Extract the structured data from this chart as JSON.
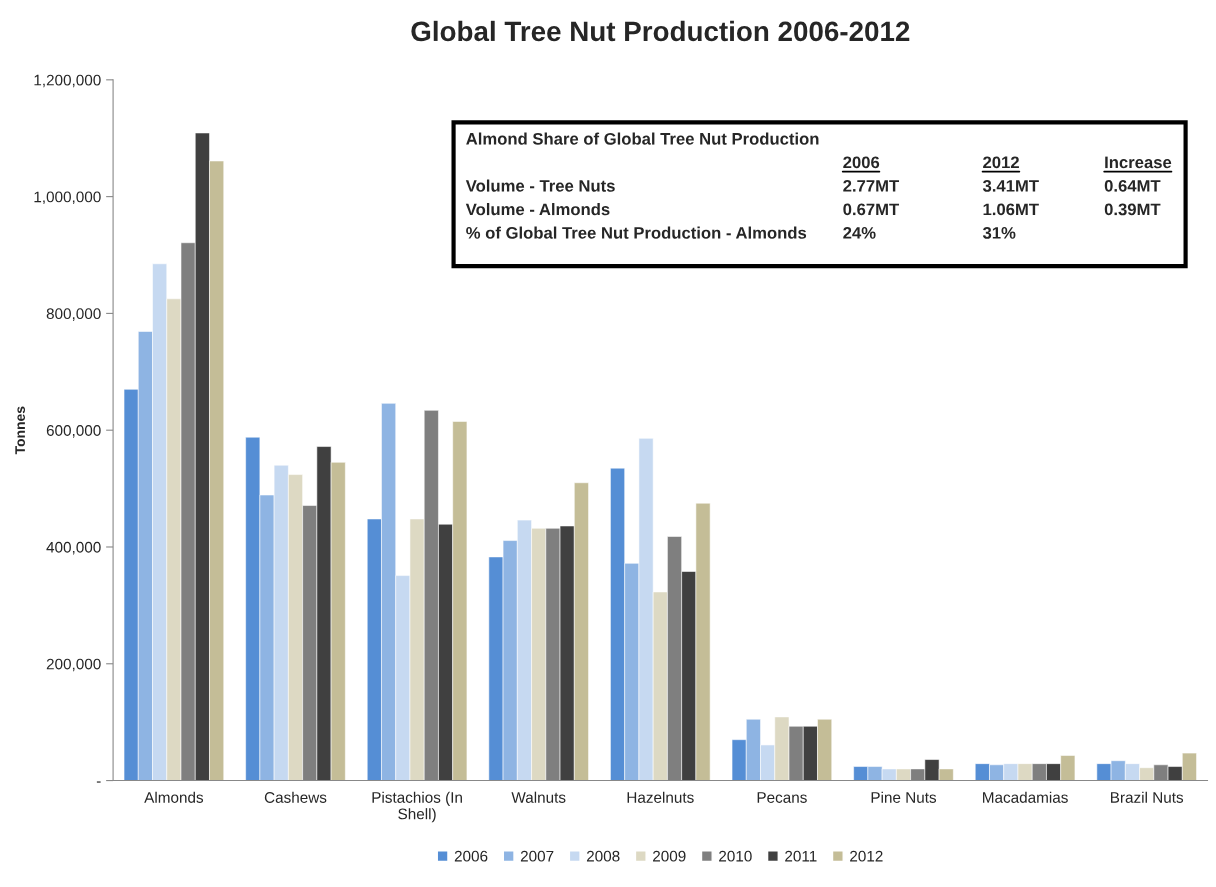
{
  "chart_data": {
    "type": "bar",
    "title": "Global Tree Nut Production 2006-2012",
    "ylabel": "Tonnes",
    "categories": [
      "Almonds",
      "Cashews",
      "Pistachios (In Shell)",
      "Walnuts",
      "Hazelnuts",
      "Pecans",
      "Pine Nuts",
      "Macadamias",
      "Brazil Nuts"
    ],
    "series": [
      {
        "name": "2006",
        "color": "#558ed5",
        "values": [
          670000,
          588000,
          448000,
          383000,
          535000,
          70000,
          24000,
          29000,
          29000
        ]
      },
      {
        "name": "2007",
        "color": "#8eb4e3",
        "values": [
          769000,
          489000,
          646000,
          411000,
          372000,
          105000,
          24000,
          27000,
          34000
        ]
      },
      {
        "name": "2008",
        "color": "#c6d9f1",
        "values": [
          885000,
          540000,
          351000,
          446000,
          586000,
          61000,
          20000,
          29000,
          29000
        ]
      },
      {
        "name": "2009",
        "color": "#ddd9c3",
        "values": [
          825000,
          524000,
          448000,
          432000,
          323000,
          109000,
          20000,
          29000,
          22000
        ]
      },
      {
        "name": "2010",
        "color": "#7f7f7f",
        "values": [
          921000,
          471000,
          634000,
          432000,
          418000,
          93000,
          20000,
          29000,
          27000
        ]
      },
      {
        "name": "2011",
        "color": "#404040",
        "values": [
          1109000,
          572000,
          439000,
          436000,
          358000,
          93000,
          36000,
          29000,
          24000
        ]
      },
      {
        "name": "2012",
        "color": "#c4bd97",
        "values": [
          1061000,
          545000,
          615000,
          510000,
          475000,
          105000,
          20000,
          43000,
          47000
        ]
      }
    ],
    "ylim": [
      0,
      1200000
    ],
    "yticks": [
      {
        "value": 0,
        "label": "-"
      },
      {
        "value": 200000,
        "label": "200,000"
      },
      {
        "value": 400000,
        "label": "400,000"
      },
      {
        "value": 600000,
        "label": "600,000"
      },
      {
        "value": 800000,
        "label": "800,000"
      },
      {
        "value": 1000000,
        "label": "1,000,000"
      },
      {
        "value": 1200000,
        "label": "1,200,000"
      }
    ],
    "grid": false,
    "legend": "bottom",
    "annotations": [
      "Almond Share of Global Tree Nut Production",
      "2006",
      "2012",
      "Increase",
      "Volume - Tree Nuts",
      "2.77MT",
      "3.41MT",
      "0.64MT",
      "Volume - Almonds",
      "0.67MT",
      "1.06MT",
      "0.39MT",
      "% of Global Tree Nut Production - Almonds",
      "24%",
      "31%"
    ]
  }
}
